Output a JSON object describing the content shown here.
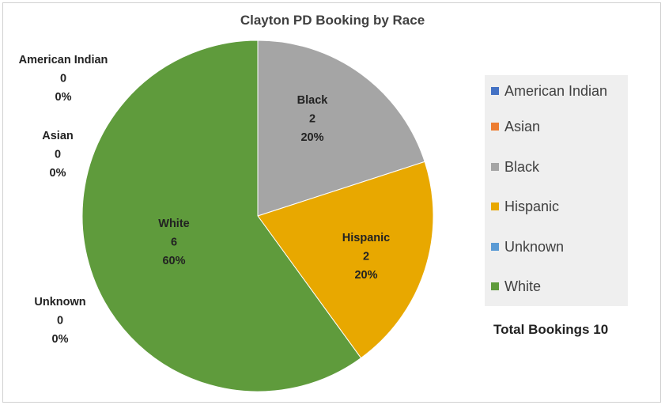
{
  "chart_data": {
    "type": "pie",
    "title": "Clayton PD Booking by Race",
    "categories": [
      "American Indian",
      "Asian",
      "Black",
      "Hispanic",
      "Unknown",
      "White"
    ],
    "values": [
      0,
      0,
      2,
      2,
      0,
      6
    ],
    "percent_labels": [
      "0%",
      "0%",
      "20%",
      "20%",
      "0%",
      "60%"
    ],
    "colors": [
      "#4472c4",
      "#ed7d31",
      "#a5a5a5",
      "#e8a800",
      "#5b9bd5",
      "#5f9b3c"
    ],
    "legend_placement": "right",
    "total_label": "Total Bookings 10"
  }
}
